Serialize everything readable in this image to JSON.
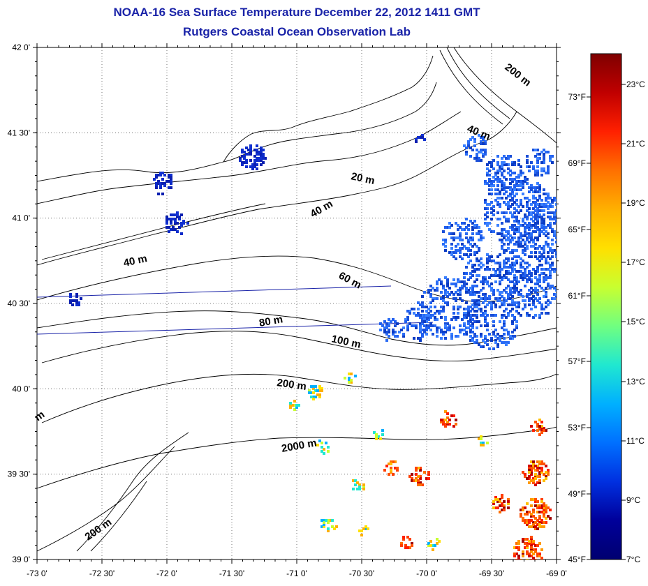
{
  "title_line1": "NOAA-16 Sea Surface Temperature December 22, 2012 1411 GMT",
  "title_line2": "Rutgers Coastal Ocean Observation Lab",
  "lat_labels": [
    "42 0'",
    "41 30'",
    "41 0'",
    "40 30'",
    "40 0'",
    "39 30'",
    "39 0'"
  ],
  "lon_labels": [
    "-73 0'",
    "-72 30'",
    "-72 0'",
    "-71 30'",
    "-71 0'",
    "-70 30'",
    "-70 0'",
    "-69 30'",
    "-69 0'"
  ],
  "depth_labels": [
    "200 m",
    "40 m",
    "20 m",
    "40 m",
    "40 m",
    "60 m",
    "80 m",
    "100 m",
    "200 m",
    "2000 m",
    "200 m",
    "m"
  ],
  "colorbar": {
    "celsius_labels": [
      "23°C",
      "21°C",
      "19°C",
      "17°C",
      "15°C",
      "13°C",
      "11°C",
      "9°C",
      "7°C"
    ],
    "fahrenheit_labels": [
      "73°F",
      "69°F",
      "65°F",
      "61°F",
      "57°F",
      "53°F",
      "49°F",
      "45°F"
    ],
    "colors": [
      "#7f0000",
      "#c00000",
      "#ff2000",
      "#ff7000",
      "#ffb000",
      "#ffe000",
      "#c8ff30",
      "#70ff80",
      "#20e8d0",
      "#00b0ff",
      "#0070ff",
      "#0030e0",
      "#00009a",
      "#000070"
    ]
  }
}
